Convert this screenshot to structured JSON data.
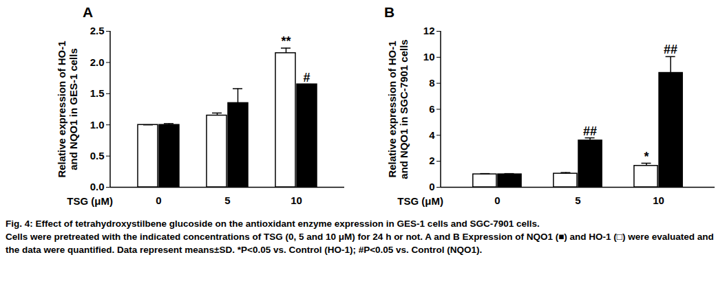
{
  "chart_data": [
    {
      "type": "bar",
      "title": "A",
      "xlabel": "TSG (μM)",
      "ylabel": "Relative expression of HO-1\nand NQO1 in GES-1 cells",
      "categories": [
        "0",
        "5",
        "10"
      ],
      "series": [
        {
          "name": "HO-1",
          "color": "#ffffff",
          "values": [
            1.0,
            1.15,
            2.15
          ],
          "errors": [
            0,
            0.04,
            0.08
          ]
        },
        {
          "name": "NQO1",
          "color": "#000000",
          "values": [
            1.0,
            1.35,
            1.65
          ],
          "errors": [
            0.02,
            0.23,
            0
          ]
        }
      ],
      "ylim": [
        0,
        2.5
      ],
      "yticks": [
        {
          "value": 0,
          "label": "0.0"
        },
        0.5,
        {
          "value": 1,
          "label": "1.0"
        },
        1.5,
        {
          "value": 2,
          "label": "2.0"
        },
        2.5
      ],
      "annotations": [
        {
          "category": "10",
          "series": "HO-1",
          "text": "**"
        },
        {
          "category": "10",
          "series": "NQO1",
          "text": "#"
        }
      ]
    },
    {
      "type": "bar",
      "title": "B",
      "xlabel": "TSG (μM)",
      "ylabel": "Relative expression of HO-1\nand NQO1 in SGC-7901 cells",
      "categories": [
        "0",
        "5",
        "10"
      ],
      "series": [
        {
          "name": "HO-1",
          "color": "#ffffff",
          "values": [
            1.0,
            1.05,
            1.65
          ],
          "errors": [
            0.05,
            0.08,
            0.2
          ]
        },
        {
          "name": "NQO1",
          "color": "#000000",
          "values": [
            1.0,
            3.6,
            8.8
          ],
          "errors": [
            0.05,
            0.2,
            1.25
          ]
        }
      ],
      "ylim": [
        0,
        12
      ],
      "yticks": [
        0,
        2,
        4,
        6,
        8,
        10,
        12
      ],
      "annotations": [
        {
          "category": "5",
          "series": "NQO1",
          "text": "##"
        },
        {
          "category": "10",
          "series": "NQO1",
          "text": "##"
        },
        {
          "category": "10",
          "series": "HO-1",
          "text": "*"
        }
      ]
    }
  ],
  "caption": {
    "title": "Fig. 4: Effect of tetrahydroxystilbene glucoside on the antioxidant enzyme expression in GES-1 cells and SGC-7901 cells.",
    "text": "Cells were pretreated with the indicated concentrations of TSG (0, 5 and 10 μM) for 24 h or not. A and B Expression of NQO1 (■) and HO-1 (□) were evaluated and the data were quantified. Data represent means±SD. *P<0.05 vs. Control (HO-1); #P<0.05 vs. Control (NQO1)."
  }
}
